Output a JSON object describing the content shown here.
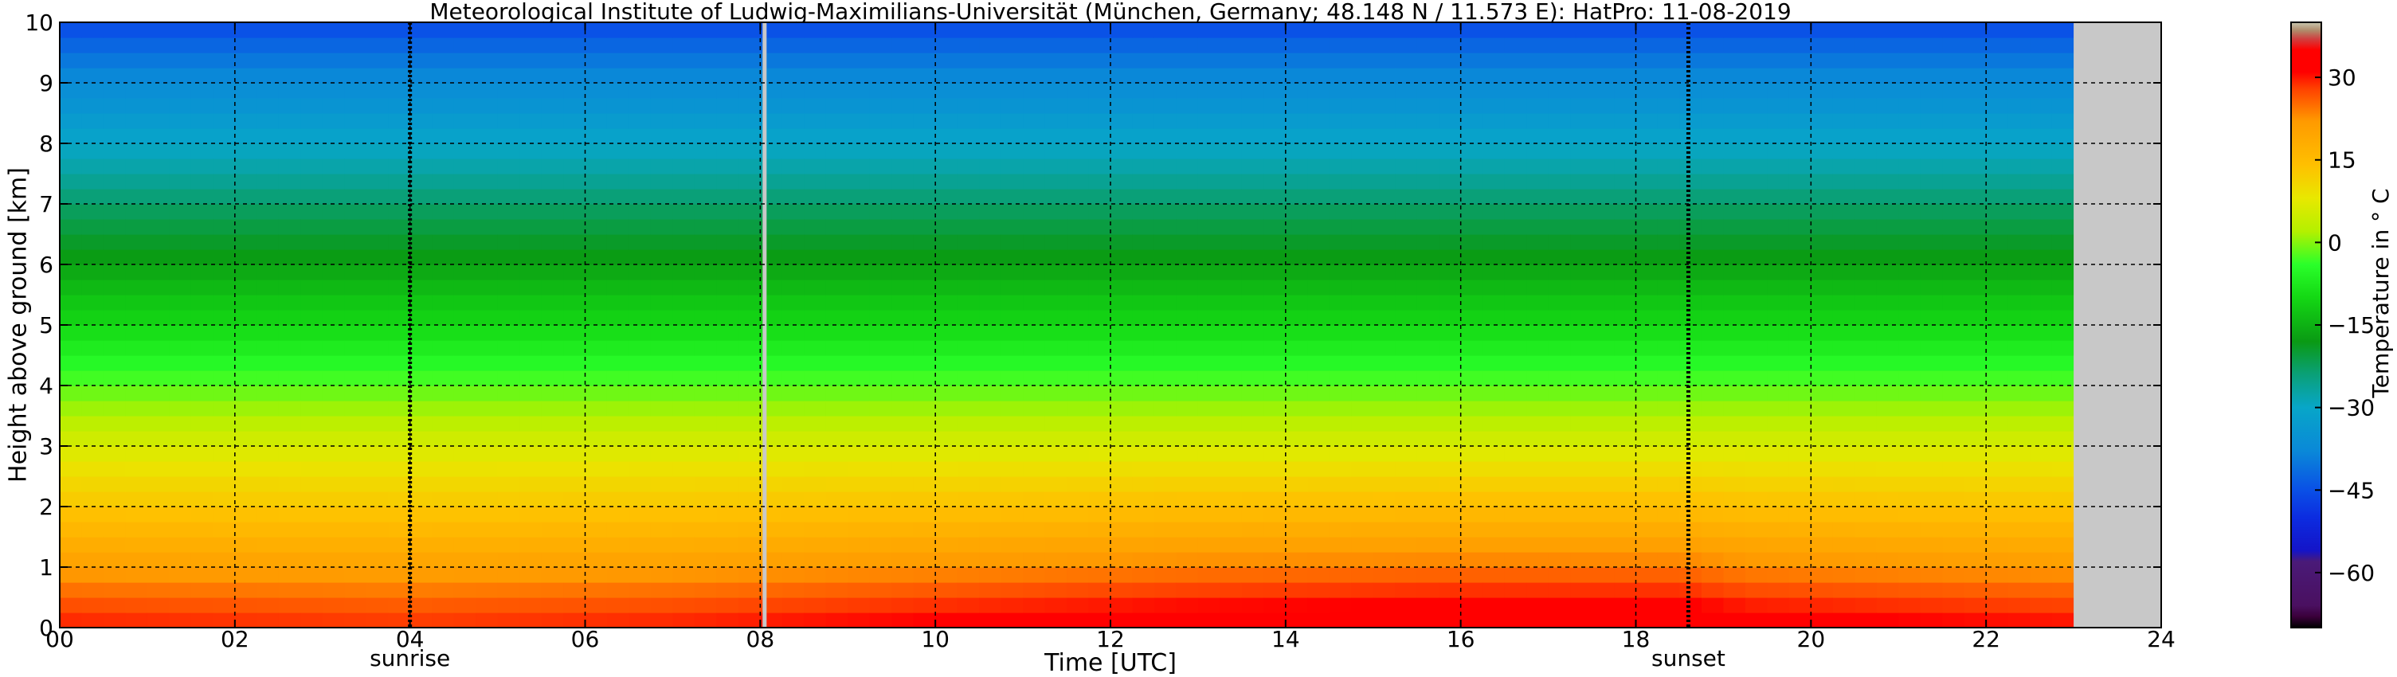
{
  "chart_data": {
    "type": "heatmap",
    "title": "Meteorological Institute of Ludwig-Maximilians-Universität (München, Germany; 48.148 N / 11.573 E):    HatPro: 11-08-2019",
    "xlabel": "Time [UTC]",
    "ylabel": "Height above ground [km]",
    "xlim": [
      0,
      24
    ],
    "ylim": [
      0,
      10
    ],
    "x_ticks": [
      "00",
      "02",
      "04",
      "06",
      "08",
      "10",
      "12",
      "14",
      "16",
      "18",
      "20",
      "22",
      "24"
    ],
    "y_ticks": [
      "0",
      "1",
      "2",
      "3",
      "4",
      "5",
      "6",
      "7",
      "8",
      "9",
      "10"
    ],
    "grid": true,
    "data_end_hour": 23.0,
    "no_data_color": "#c8c8c8",
    "annotations": [
      {
        "text": "sunrise",
        "x": 4.0
      },
      {
        "text": "sunset",
        "x": 18.6
      }
    ],
    "gaps": [
      {
        "x": 8.05,
        "color": "#c8c8c8"
      }
    ],
    "profile": [
      {
        "height": 0.0,
        "temp": 30
      },
      {
        "height": 0.5,
        "temp": 26
      },
      {
        "height": 1.0,
        "temp": 21
      },
      {
        "height": 1.5,
        "temp": 17
      },
      {
        "height": 2.0,
        "temp": 13
      },
      {
        "height": 2.5,
        "temp": 10
      },
      {
        "height": 3.0,
        "temp": 6
      },
      {
        "height": 3.5,
        "temp": 2
      },
      {
        "height": 4.0,
        "temp": -2
      },
      {
        "height": 4.5,
        "temp": -6
      },
      {
        "height": 5.0,
        "temp": -10
      },
      {
        "height": 5.5,
        "temp": -13
      },
      {
        "height": 6.0,
        "temp": -17
      },
      {
        "height": 6.5,
        "temp": -20
      },
      {
        "height": 7.0,
        "temp": -23
      },
      {
        "height": 7.5,
        "temp": -27
      },
      {
        "height": 8.0,
        "temp": -30
      },
      {
        "height": 8.5,
        "temp": -34
      },
      {
        "height": 9.0,
        "temp": -37
      },
      {
        "height": 9.5,
        "temp": -41
      },
      {
        "height": 10.0,
        "temp": -46
      }
    ],
    "diurnal": [
      {
        "time": 0,
        "delta": 0
      },
      {
        "time": 4,
        "delta": -1
      },
      {
        "time": 7,
        "delta": 0
      },
      {
        "time": 10,
        "delta": 2
      },
      {
        "time": 13,
        "delta": 4
      },
      {
        "time": 16,
        "delta": 5
      },
      {
        "time": 18.5,
        "delta": 5
      },
      {
        "time": 19.3,
        "delta": 3
      },
      {
        "time": 21,
        "delta": 2
      },
      {
        "time": 22.8,
        "delta": 1
      }
    ],
    "colorbar": {
      "label": "Temperature in ° C",
      "range": [
        -70,
        40
      ],
      "ticks": [
        "30",
        "15",
        "0",
        "−15",
        "−30",
        "−45",
        "−60"
      ],
      "tick_values": [
        30,
        15,
        0,
        -15,
        -30,
        -45,
        -60
      ],
      "stops": [
        {
          "value": -70,
          "color": "#000000"
        },
        {
          "value": -68,
          "color": "#3a003a"
        },
        {
          "value": -66,
          "color": "#4a1060"
        },
        {
          "value": -58,
          "color": "#4a1a78"
        },
        {
          "value": -56,
          "color": "#1414c8"
        },
        {
          "value": -50,
          "color": "#0c2ce0"
        },
        {
          "value": -45,
          "color": "#0a50e6"
        },
        {
          "value": -38,
          "color": "#0a88d8"
        },
        {
          "value": -30,
          "color": "#08a6c8"
        },
        {
          "value": -24,
          "color": "#0aa078"
        },
        {
          "value": -18,
          "color": "#0a9a14"
        },
        {
          "value": -10,
          "color": "#14d814"
        },
        {
          "value": -4,
          "color": "#2aff2a"
        },
        {
          "value": 2,
          "color": "#b4f000"
        },
        {
          "value": 8,
          "color": "#e8e800"
        },
        {
          "value": 14,
          "color": "#ffc000"
        },
        {
          "value": 22,
          "color": "#ff9a00"
        },
        {
          "value": 28,
          "color": "#ff4000"
        },
        {
          "value": 31,
          "color": "#ff0000"
        },
        {
          "value": 35,
          "color": "#ff0000"
        },
        {
          "value": 37,
          "color": "#d04040"
        },
        {
          "value": 38.5,
          "color": "#b08a6a"
        },
        {
          "value": 40,
          "color": "#c8c8b0"
        }
      ]
    }
  }
}
